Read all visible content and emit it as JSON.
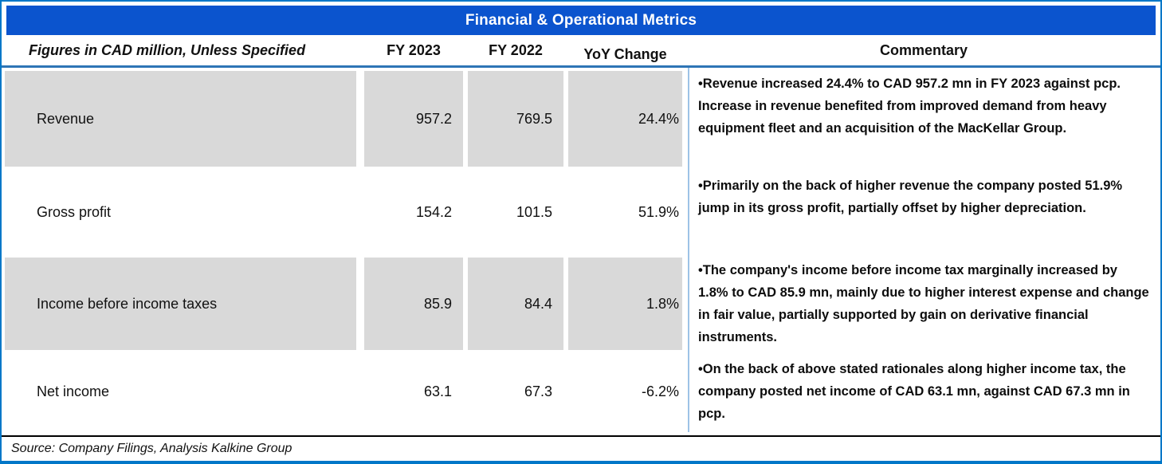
{
  "title": "Financial & Operational Metrics",
  "header": {
    "label": "Figures in CAD million, Unless Specified",
    "fy2023": "FY 2023",
    "fy2022": "FY 2022",
    "yoy": "YoY Change",
    "commentary": "Commentary"
  },
  "rows": [
    {
      "metric": "Revenue",
      "fy2023": "957.2",
      "fy2022": "769.5",
      "yoy": "24.4%",
      "commentary": "•Revenue increased 24.4% to CAD 957.2 mn in FY 2023 against pcp. Increase in revenue benefited from improved demand from heavy equipment fleet and an acquisition of the MacKellar Group.",
      "shaded": true
    },
    {
      "metric": "Gross profit",
      "fy2023": "154.2",
      "fy2022": "101.5",
      "yoy": "51.9%",
      "commentary": "•Primarily on the back of higher revenue the company posted 51.9% jump in its gross profit, partially offset by higher depreciation.",
      "shaded": false
    },
    {
      "metric": "Income before income taxes",
      "fy2023": "85.9",
      "fy2022": "84.4",
      "yoy": "1.8%",
      "commentary": "•The company's income before income tax marginally increased by 1.8% to CAD 85.9 mn, mainly due to higher interest expense and change in fair value, partially supported by gain on derivative financial instruments.",
      "shaded": true
    },
    {
      "metric": "Net income",
      "fy2023": "63.1",
      "fy2022": "67.3",
      "yoy": "-6.2%",
      "commentary": "•On the back of above stated rationales along higher income tax, the company posted net income of CAD 63.1 mn, against CAD 67.3 mn in pcp.",
      "shaded": false
    }
  ],
  "source": "Source: Company Filings, Analysis Kalkine Group",
  "colors": {
    "title_bar": "#0B54CE",
    "outer_border": "#0077C8",
    "header_rule": "#2E75B6",
    "row_shade": "#D9D9D9",
    "column_divider": "#9DC3E6",
    "title_text": "#FFFFFF"
  }
}
